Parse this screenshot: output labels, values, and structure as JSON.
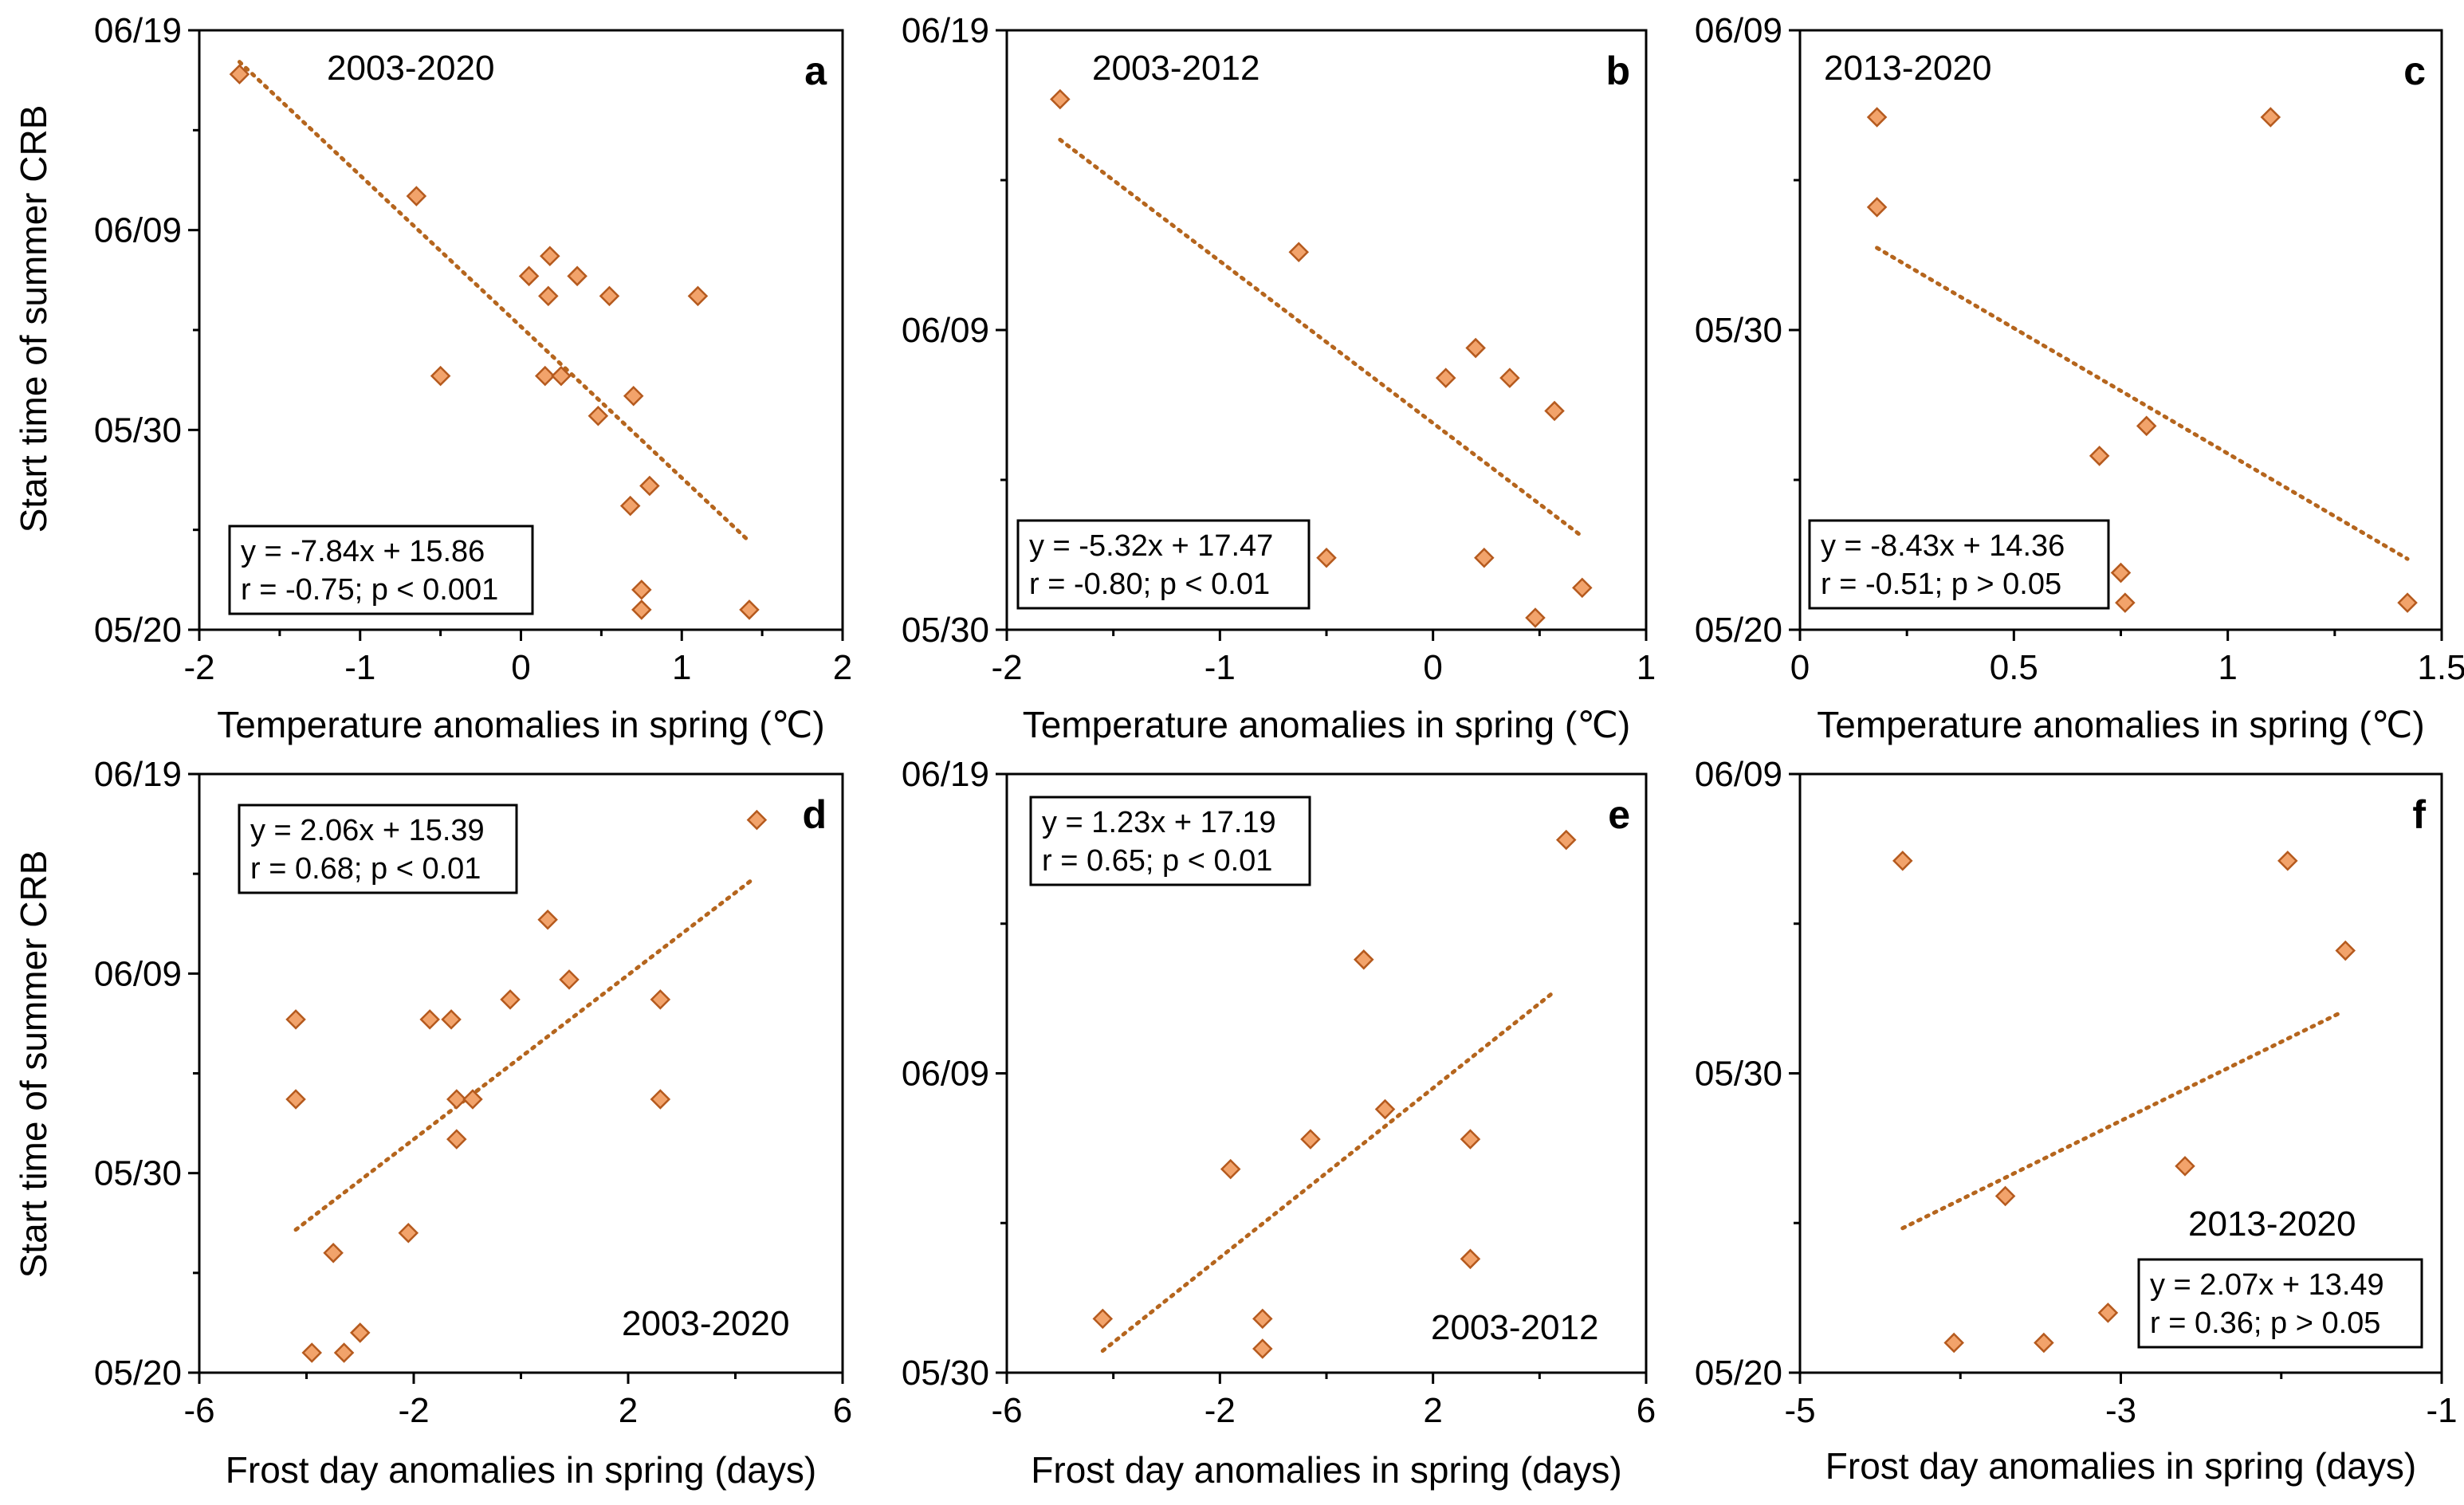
{
  "ylabel": "Start time of summer CRB",
  "chart_data": [
    {
      "id": "a",
      "type": "scatter",
      "period": "2003-2020",
      "xlabel": "Temperature anomalies in spring (℃)",
      "xlim": [
        -2,
        2
      ],
      "xticks": [
        "-2",
        "-1",
        "0",
        "1",
        "2"
      ],
      "yticks": [
        "05/20",
        "05/30",
        "06/09",
        "06/19"
      ],
      "x": [
        -1.75,
        -0.65,
        -0.5,
        0.05,
        0.15,
        0.17,
        0.18,
        0.25,
        0.35,
        0.48,
        0.55,
        0.68,
        0.7,
        0.75,
        0.75,
        0.8,
        1.1,
        1.42
      ],
      "y": [
        17.8,
        11.7,
        2.7,
        7.7,
        2.7,
        6.7,
        8.7,
        2.7,
        7.7,
        0.7,
        6.7,
        -3.8,
        1.7,
        -8.0,
        -9.0,
        -2.8,
        6.7,
        -9.0
      ],
      "trend": {
        "slope": -7.84,
        "intercept": 15.86,
        "x_range": [
          -1.75,
          1.4
        ]
      },
      "equation": "y = -7.84x + 15.86",
      "stats": "r = -0.75; p < 0.001"
    },
    {
      "id": "b",
      "type": "scatter",
      "period": "2003-2012",
      "xlabel": "Temperature anomalies in spring (℃)",
      "xlim": [
        -2,
        1
      ],
      "xticks": [
        "-2",
        "-1",
        "0",
        "1"
      ],
      "yticks": [
        "05/30",
        "06/09",
        "06/19"
      ],
      "x": [
        -1.75,
        -0.63,
        -0.5,
        0.06,
        0.2,
        0.24,
        0.36,
        0.48,
        0.57,
        0.7
      ],
      "y": [
        17.7,
        12.6,
        2.4,
        8.4,
        9.4,
        2.4,
        8.4,
        0.4,
        7.3,
        1.4
      ],
      "trend": {
        "slope": -5.32,
        "intercept": 17.47,
        "x_range": [
          -1.75,
          0.7
        ]
      },
      "equation": "y = -5.32x + 17.47",
      "stats": "r = -0.80; p < 0.01"
    },
    {
      "id": "c",
      "type": "scatter",
      "period": "2013-2020",
      "xlabel": "Temperature anomalies in spring (℃)",
      "xlim": [
        0,
        1.5
      ],
      "xticks": [
        "0",
        "0.5",
        "1",
        "1.5"
      ],
      "yticks": [
        "05/20",
        "05/30",
        "06/09"
      ],
      "x": [
        0.18,
        0.18,
        0.7,
        0.75,
        0.76,
        0.81,
        1.1,
        1.42
      ],
      "y": [
        17.1,
        14.1,
        5.8,
        1.9,
        0.9,
        6.8,
        17.1,
        0.9
      ],
      "trend": {
        "slope": -8.43,
        "intercept": 14.36,
        "x_range": [
          0.18,
          1.42
        ]
      },
      "equation": "y = -8.43x + 14.36",
      "stats": "r = -0.51; p > 0.05"
    },
    {
      "id": "d",
      "type": "scatter",
      "period": "2003-2020",
      "xlabel": "Frost day anomalies in spring (days)",
      "xlim": [
        -6,
        6
      ],
      "xticks": [
        "-6",
        "-2",
        "2",
        "6"
      ],
      "yticks": [
        "05/20",
        "05/30",
        "06/09",
        "06/19"
      ],
      "x": [
        -4.2,
        -4.2,
        -3.9,
        -3.5,
        -3.3,
        -3.0,
        -2.1,
        -1.7,
        -1.3,
        -1.2,
        -1.2,
        -0.9,
        -0.2,
        0.5,
        0.9,
        2.6,
        2.6,
        4.4
      ],
      "y": [
        7.7,
        3.7,
        -9.0,
        -4.0,
        -9.0,
        -8.0,
        -3.0,
        7.7,
        7.7,
        3.7,
        1.7,
        3.7,
        8.7,
        12.7,
        9.7,
        8.7,
        3.7,
        17.7
      ],
      "trend": {
        "slope": 2.06,
        "intercept": 15.39,
        "x_range": [
          -4.2,
          4.3
        ]
      },
      "equation": "y = 2.06x + 15.39",
      "stats": "r = 0.68; p < 0.01"
    },
    {
      "id": "e",
      "type": "scatter",
      "period": "2003-2012",
      "xlabel": "Frost day anomalies in spring (days)",
      "xlim": [
        -6,
        6
      ],
      "xticks": [
        "-6",
        "-2",
        "2",
        "6"
      ],
      "yticks": [
        "05/30",
        "06/09",
        "06/19"
      ],
      "x": [
        -4.2,
        -1.8,
        -1.2,
        -1.2,
        -0.3,
        0.7,
        1.1,
        2.7,
        2.7,
        4.5
      ],
      "y": [
        1.8,
        6.8,
        1.8,
        0.8,
        7.8,
        13.8,
        8.8,
        7.8,
        3.8,
        17.8
      ],
      "trend": {
        "slope": 1.23,
        "intercept": 17.19,
        "x_range": [
          -4.2,
          4.3
        ]
      },
      "equation": "y = 1.23x + 17.19",
      "stats": "r = 0.65; p < 0.01"
    },
    {
      "id": "f",
      "type": "scatter",
      "period": "2013-2020",
      "xlabel": "Frost day anomalies in spring (days)",
      "xlim": [
        -5,
        0
      ],
      "xticks": [
        "-5",
        "-3",
        "-1"
      ],
      "yticks": [
        "05/20",
        "05/30",
        "06/09"
      ],
      "x": [
        -4.2,
        -3.8,
        -3.4,
        -3.1,
        -2.6,
        -2.0,
        -1.2,
        -0.75
      ],
      "y": [
        17.1,
        1.0,
        5.9,
        1.0,
        2.0,
        6.9,
        17.1,
        14.1
      ],
      "trend": {
        "slope": 2.07,
        "intercept": 13.49,
        "x_range": [
          -4.2,
          -0.8
        ]
      },
      "equation": "y = 2.07x + 13.49",
      "stats": "r = 0.36; p > 0.05"
    }
  ]
}
